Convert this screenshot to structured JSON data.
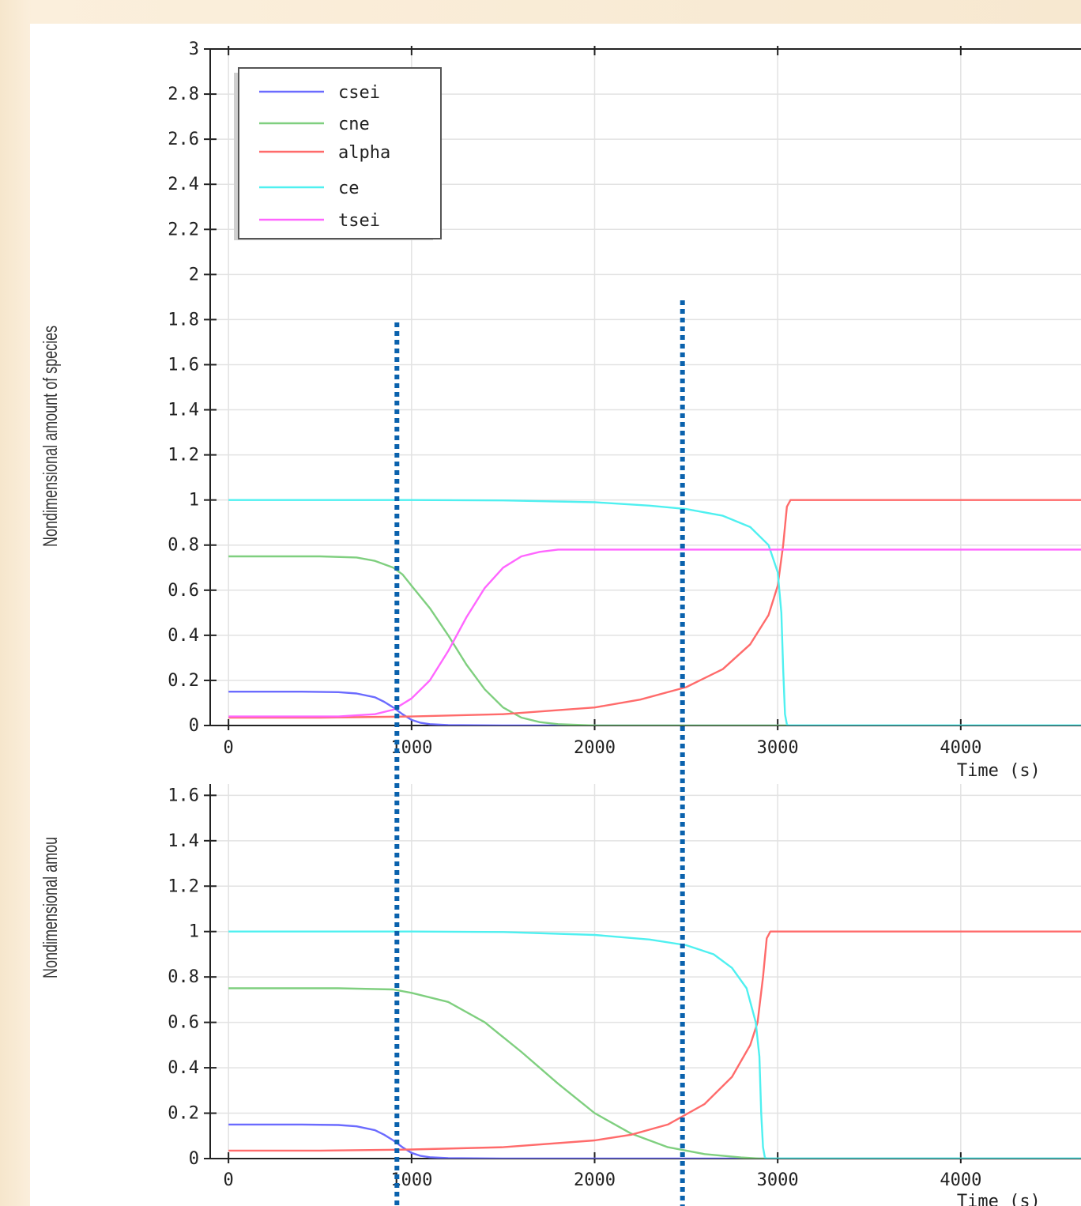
{
  "chart_data": [
    {
      "type": "line",
      "xlabel": "Time (s)",
      "ylabel": "Nondimensional amount of species",
      "xlim": [
        -100,
        4700
      ],
      "ylim": [
        0,
        3
      ],
      "xticks": [
        "0",
        "1000",
        "2000",
        "3000",
        "4000"
      ],
      "yticks": [
        "0",
        "0.2",
        "0.4",
        "0.6",
        "0.8",
        "1",
        "1.2",
        "1.4",
        "1.6",
        "1.8",
        "2",
        "2.2",
        "2.4",
        "2.6",
        "2.8",
        "3"
      ],
      "grid": true,
      "legend": "top-left",
      "series": [
        {
          "name": "csei",
          "color": "#6b6bff",
          "x": [
            0,
            400,
            600,
            700,
            800,
            850,
            900,
            950,
            1000,
            1050,
            1100,
            1200,
            1500,
            2000,
            3000,
            4000,
            4700
          ],
          "y": [
            0.15,
            0.15,
            0.148,
            0.142,
            0.125,
            0.105,
            0.08,
            0.05,
            0.025,
            0.012,
            0.006,
            0.002,
            0,
            0,
            0,
            0,
            0
          ]
        },
        {
          "name": "cne",
          "color": "#7fcf7f",
          "x": [
            0,
            500,
            700,
            800,
            900,
            950,
            1000,
            1100,
            1200,
            1300,
            1400,
            1500,
            1600,
            1700,
            1800,
            2000,
            3000,
            4000,
            4700
          ],
          "y": [
            0.75,
            0.75,
            0.745,
            0.73,
            0.7,
            0.67,
            0.62,
            0.52,
            0.4,
            0.27,
            0.16,
            0.08,
            0.035,
            0.015,
            0.006,
            0,
            0,
            0,
            0
          ]
        },
        {
          "name": "alpha",
          "color": "#ff6b6b",
          "x": [
            0,
            500,
            1000,
            1500,
            2000,
            2250,
            2500,
            2700,
            2850,
            2950,
            3000,
            3030,
            3050,
            3070,
            3100,
            3500,
            4000,
            4700
          ],
          "y": [
            0.035,
            0.035,
            0.04,
            0.05,
            0.08,
            0.115,
            0.17,
            0.25,
            0.36,
            0.49,
            0.62,
            0.8,
            0.97,
            1.0,
            1.0,
            1.0,
            1.0,
            1.0
          ]
        },
        {
          "name": "ce",
          "color": "#4ff0f0",
          "x": [
            0,
            1000,
            1500,
            2000,
            2300,
            2500,
            2700,
            2850,
            2950,
            3000,
            3020,
            3030,
            3040,
            3050,
            3060,
            3500,
            4000,
            4700
          ],
          "y": [
            1.0,
            1.0,
            0.998,
            0.99,
            0.975,
            0.96,
            0.93,
            0.88,
            0.8,
            0.68,
            0.5,
            0.25,
            0.05,
            0.005,
            0,
            0,
            0,
            0
          ]
        },
        {
          "name": "tsei",
          "color": "#ff66ff",
          "x": [
            0,
            600,
            800,
            900,
            1000,
            1100,
            1200,
            1300,
            1400,
            1500,
            1600,
            1700,
            1800,
            2000,
            3000,
            4000,
            4700
          ],
          "y": [
            0.04,
            0.04,
            0.05,
            0.07,
            0.12,
            0.2,
            0.33,
            0.48,
            0.61,
            0.7,
            0.75,
            0.77,
            0.78,
            0.78,
            0.78,
            0.78,
            0.78
          ]
        }
      ]
    },
    {
      "type": "line",
      "xlabel": "Time (s)",
      "ylabel": "Nondimensional amou",
      "xlim": [
        -100,
        4700
      ],
      "ylim": [
        0,
        1.65
      ],
      "xticks": [
        "0",
        "1000",
        "2000",
        "3000",
        "4000"
      ],
      "yticks": [
        "0",
        "0.2",
        "0.4",
        "0.6",
        "0.8",
        "1",
        "1.2",
        "1.4",
        "1.6"
      ],
      "grid": true,
      "series": [
        {
          "name": "csei",
          "color": "#6b6bff",
          "x": [
            0,
            400,
            600,
            700,
            800,
            850,
            900,
            950,
            1000,
            1050,
            1100,
            1200,
            1500,
            2000,
            3000,
            4000,
            4700
          ],
          "y": [
            0.15,
            0.15,
            0.148,
            0.142,
            0.125,
            0.105,
            0.08,
            0.05,
            0.025,
            0.012,
            0.006,
            0.002,
            0,
            0,
            0,
            0,
            0
          ]
        },
        {
          "name": "cne",
          "color": "#7fcf7f",
          "x": [
            0,
            600,
            900,
            1000,
            1200,
            1400,
            1600,
            1800,
            2000,
            2200,
            2400,
            2600,
            2800,
            2900,
            3000,
            4000,
            4700
          ],
          "y": [
            0.75,
            0.75,
            0.745,
            0.73,
            0.69,
            0.6,
            0.47,
            0.33,
            0.2,
            0.11,
            0.05,
            0.02,
            0.005,
            0,
            0,
            0,
            0
          ]
        },
        {
          "name": "alpha",
          "color": "#ff6b6b",
          "x": [
            0,
            500,
            1000,
            1500,
            2000,
            2200,
            2400,
            2600,
            2750,
            2850,
            2890,
            2920,
            2940,
            2960,
            3000,
            3500,
            4000,
            4700
          ],
          "y": [
            0.035,
            0.035,
            0.04,
            0.05,
            0.08,
            0.105,
            0.15,
            0.24,
            0.36,
            0.5,
            0.6,
            0.8,
            0.97,
            1.0,
            1.0,
            1.0,
            1.0,
            1.0
          ]
        },
        {
          "name": "ce",
          "color": "#4ff0f0",
          "x": [
            0,
            1000,
            1500,
            2000,
            2300,
            2500,
            2650,
            2750,
            2830,
            2880,
            2900,
            2910,
            2920,
            2930,
            2940,
            3500,
            4000,
            4700
          ],
          "y": [
            1.0,
            1.0,
            0.998,
            0.985,
            0.965,
            0.94,
            0.9,
            0.84,
            0.75,
            0.6,
            0.45,
            0.2,
            0.05,
            0.005,
            0,
            0,
            0,
            0
          ]
        }
      ]
    }
  ],
  "markers": {
    "color": "#0a62ad",
    "times": [
      920,
      2480
    ]
  }
}
